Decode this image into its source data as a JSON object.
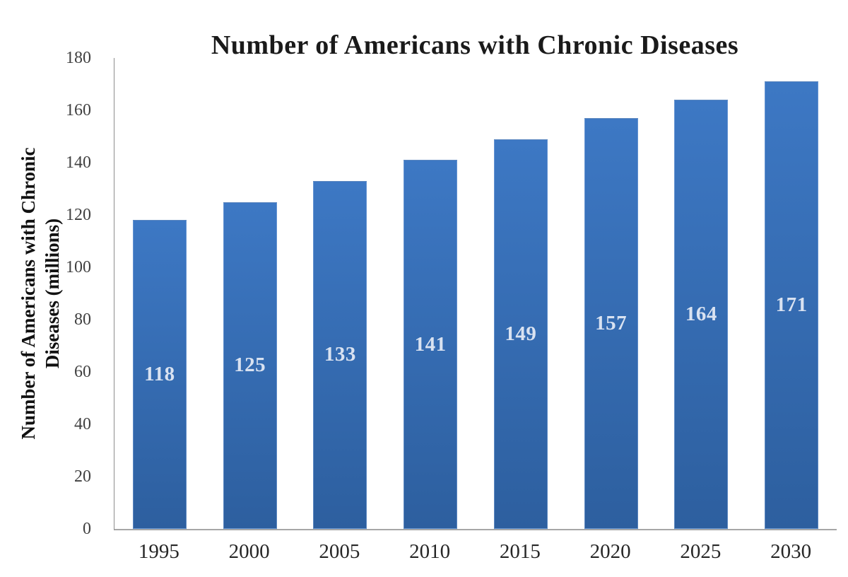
{
  "chart_data": {
    "type": "bar",
    "title": "Number of Americans with Chronic Diseases",
    "categories": [
      "1995",
      "2000",
      "2005",
      "2010",
      "2015",
      "2020",
      "2025",
      "2030"
    ],
    "values": [
      118,
      125,
      133,
      141,
      149,
      157,
      164,
      171
    ],
    "xlabel": "",
    "ylabel": "Number of Americans with Chronic Diseases (millions)",
    "ylabel_lines": [
      "Number of Americans with Chronic",
      "Diseases (millions)"
    ],
    "ylim": [
      0,
      180
    ],
    "yticks": [
      0,
      20,
      40,
      60,
      80,
      100,
      120,
      140,
      160,
      180
    ],
    "grid": false,
    "legend": "none",
    "bar_color_top": "#3d78c4",
    "bar_color_bottom": "#2d5f9f",
    "bar_label_color": "#d9e2f1",
    "axis_line_color": "#8c8c8c",
    "baseline_color": "#a6a6a6"
  }
}
